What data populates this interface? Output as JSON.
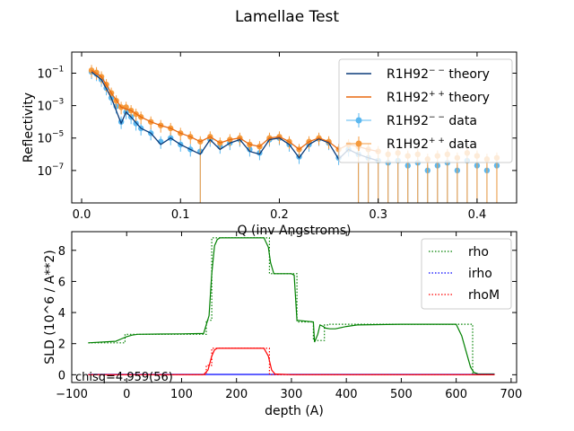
{
  "figure": {
    "title": "Lamellae Test"
  },
  "chart_data": [
    {
      "type": "scatter",
      "title": "",
      "xlabel": "Q (inv Angstroms)",
      "ylabel": "Reflectivity",
      "xscale": "linear",
      "yscale": "log",
      "xlim": [
        -0.01,
        0.44
      ],
      "ylim": [
        1e-09,
        2
      ],
      "xticks": [
        0.0,
        0.1,
        0.2,
        0.3,
        0.4
      ],
      "xtick_labels": [
        "0.0",
        "0.1",
        "0.2",
        "0.3",
        "0.4"
      ],
      "yticks": [
        1e-07,
        1e-05,
        0.001,
        0.1
      ],
      "ytick_labels": [
        "10",
        "10",
        "10",
        "10"
      ],
      "ytick_exponents": [
        "−7",
        "−5",
        "−3",
        "−1"
      ],
      "legend_position": "top-right",
      "legend": [
        {
          "label": "R1H92",
          "sup": "− −",
          "suffix": " theory",
          "kind": "line",
          "color": "#0b3b7a"
        },
        {
          "label": "R1H92",
          "sup": "+ +",
          "suffix": " theory",
          "kind": "line",
          "color": "#e8680e"
        },
        {
          "label": "R1H92",
          "sup": "− −",
          "suffix": " data",
          "kind": "errorbar",
          "color": "#5bb8f0"
        },
        {
          "label": "R1H92",
          "sup": "+ +",
          "suffix": " data",
          "kind": "errorbar",
          "color": "#f59a3c"
        }
      ],
      "series": [
        {
          "name": "R1H92−− data",
          "color": "#5bb8f0",
          "marker": "circle",
          "x": [
            0.01,
            0.015,
            0.02,
            0.025,
            0.03,
            0.035,
            0.04,
            0.045,
            0.05,
            0.055,
            0.06,
            0.07,
            0.08,
            0.09,
            0.1,
            0.11,
            0.12,
            0.13,
            0.14,
            0.15,
            0.16,
            0.17,
            0.18,
            0.19,
            0.2,
            0.21,
            0.22,
            0.23,
            0.24,
            0.25,
            0.26,
            0.27,
            0.28,
            0.29,
            0.3,
            0.31,
            0.32,
            0.33,
            0.34,
            0.35,
            0.36,
            0.37,
            0.38,
            0.39,
            0.4,
            0.41,
            0.42
          ],
          "y": [
            0.12,
            0.09,
            0.04,
            0.012,
            0.003,
            0.0009,
            0.0001,
            0.0004,
            0.0002,
            8e-05,
            4e-05,
            2e-05,
            6e-06,
            1e-05,
            4e-06,
            2e-06,
            1.5e-06,
            8e-06,
            3e-06,
            5e-06,
            8e-06,
            2e-06,
            1.2e-06,
            8e-06,
            1e-05,
            4e-06,
            7e-07,
            4e-06,
            9e-06,
            5e-06,
            6e-07,
            2e-06,
            1e-06,
            6e-07,
            4e-07,
            3e-07,
            4e-07,
            2e-07,
            3e-07,
            1e-07,
            2e-07,
            3e-07,
            1e-07,
            4e-07,
            2e-07,
            1e-07,
            2e-07
          ]
        },
        {
          "name": "R1H92++ data",
          "color": "#f59a3c",
          "marker": "circle",
          "x": [
            0.01,
            0.015,
            0.02,
            0.025,
            0.03,
            0.035,
            0.04,
            0.045,
            0.05,
            0.055,
            0.06,
            0.07,
            0.08,
            0.09,
            0.1,
            0.11,
            0.12,
            0.13,
            0.14,
            0.15,
            0.16,
            0.17,
            0.18,
            0.19,
            0.2,
            0.21,
            0.22,
            0.23,
            0.24,
            0.25,
            0.26,
            0.27,
            0.28,
            0.29,
            0.3,
            0.31,
            0.32,
            0.33,
            0.34,
            0.35,
            0.36,
            0.37,
            0.38,
            0.39,
            0.4,
            0.41,
            0.42
          ],
          "y": [
            0.15,
            0.11,
            0.06,
            0.02,
            0.006,
            0.002,
            0.0008,
            0.0008,
            0.0005,
            0.0003,
            0.0002,
            0.0001,
            6e-05,
            4e-05,
            2e-05,
            1.2e-05,
            6e-06,
            1.2e-05,
            5e-06,
            8e-06,
            1e-05,
            4e-06,
            3e-06,
            1e-05,
            1.2e-05,
            6e-06,
            2e-06,
            6e-06,
            1e-05,
            6e-06,
            2e-06,
            4e-06,
            3e-06,
            2e-06,
            1.5e-06,
            1e-06,
            1.2e-06,
            8e-07,
            1e-06,
            5e-07,
            8e-07,
            1e-06,
            6e-07,
            1.2e-06,
            8e-07,
            5e-07,
            6e-07
          ]
        },
        {
          "name": "R1H92−− theory",
          "color": "#0b3b7a",
          "marker": "line",
          "x": [
            0.01,
            0.02,
            0.03,
            0.04,
            0.045,
            0.05,
            0.06,
            0.07,
            0.08,
            0.09,
            0.1,
            0.11,
            0.12,
            0.13,
            0.14,
            0.15,
            0.16,
            0.17,
            0.18,
            0.19,
            0.2,
            0.21,
            0.22,
            0.23,
            0.24,
            0.25,
            0.26,
            0.27,
            0.28,
            0.29,
            0.3
          ],
          "y": [
            0.12,
            0.04,
            0.003,
            8e-05,
            0.0004,
            0.0002,
            4e-05,
            2e-05,
            4e-06,
            1e-05,
            4e-06,
            2e-06,
            1e-06,
            8e-06,
            2e-06,
            5e-06,
            8e-06,
            1.5e-06,
            1e-06,
            8e-06,
            1e-05,
            4e-06,
            6e-07,
            4e-06,
            9e-06,
            5e-06,
            5e-07,
            2e-06,
            1e-06,
            6e-07,
            4e-07
          ]
        },
        {
          "name": "R1H92++ theory",
          "color": "#e8680e",
          "marker": "line",
          "x": [
            0.01,
            0.02,
            0.03,
            0.04,
            0.05,
            0.06,
            0.07,
            0.08,
            0.09,
            0.1,
            0.11,
            0.12,
            0.13,
            0.14,
            0.15,
            0.16,
            0.17,
            0.18,
            0.19,
            0.2,
            0.21,
            0.22,
            0.23,
            0.24,
            0.25,
            0.26,
            0.27,
            0.28,
            0.29,
            0.3
          ],
          "y": [
            0.15,
            0.06,
            0.006,
            0.0008,
            0.0005,
            0.0002,
            0.0001,
            6e-05,
            4e-05,
            2e-05,
            1.2e-05,
            6e-06,
            1.2e-05,
            5e-06,
            8e-06,
            1e-05,
            4e-06,
            3e-06,
            1e-05,
            1.2e-05,
            6e-06,
            2e-06,
            6e-06,
            1e-05,
            6e-06,
            2e-06,
            4e-06,
            3e-06,
            2e-06,
            1.5e-06
          ]
        }
      ]
    },
    {
      "type": "line",
      "title": "",
      "xlabel": "depth (A)",
      "ylabel": "SLD (10^6 / A**2)",
      "xlim": [
        -100,
        710
      ],
      "ylim": [
        -0.5,
        9.2
      ],
      "xticks": [
        -100,
        0,
        100,
        200,
        300,
        400,
        500,
        600,
        700
      ],
      "xtick_labels": [
        "−100",
        "0",
        "100",
        "200",
        "300",
        "400",
        "500",
        "600",
        "700"
      ],
      "yticks": [
        0,
        2,
        4,
        6,
        8
      ],
      "ytick_labels": [
        "0",
        "2",
        "4",
        "6",
        "8"
      ],
      "legend_position": "top-right",
      "annotation": "chisq=4.959(56)",
      "legend": [
        {
          "label": "rho",
          "color": "#008000"
        },
        {
          "label": "irho",
          "color": "#0000ff"
        },
        {
          "label": "rhoM",
          "color": "#ff0000"
        }
      ],
      "series": [
        {
          "name": "rho",
          "color": "#008000",
          "style": "solid",
          "x": [
            -70,
            -20,
            -10,
            0,
            10,
            20,
            60,
            100,
            140,
            150,
            155,
            160,
            165,
            170,
            250,
            258,
            262,
            268,
            300,
            305,
            310,
            340,
            342,
            348,
            352,
            358,
            362,
            370,
            380,
            400,
            420,
            500,
            600,
            610,
            618,
            626,
            632,
            640,
            670
          ],
          "y": [
            2.05,
            2.15,
            2.3,
            2.45,
            2.55,
            2.6,
            2.62,
            2.63,
            2.65,
            3.8,
            6.5,
            8.3,
            8.7,
            8.8,
            8.8,
            8.2,
            7.2,
            6.5,
            6.5,
            6.4,
            3.5,
            3.4,
            2.1,
            2.6,
            3.2,
            3.1,
            3.0,
            2.95,
            2.95,
            3.1,
            3.2,
            3.25,
            3.25,
            2.5,
            1.5,
            0.5,
            0.15,
            0.05,
            0.05
          ]
        },
        {
          "name": "rho (step)",
          "color": "#008000",
          "style": "dotted",
          "x": [
            -70,
            -3,
            -3,
            145,
            145,
            155,
            155,
            260,
            260,
            310,
            310,
            340,
            340,
            360,
            360,
            370,
            370,
            630,
            630,
            670
          ],
          "y": [
            2.05,
            2.05,
            2.6,
            2.6,
            3.5,
            3.5,
            8.8,
            8.8,
            6.5,
            6.5,
            3.4,
            3.4,
            2.2,
            2.2,
            3.2,
            3.2,
            3.25,
            3.25,
            0,
            0
          ]
        },
        {
          "name": "irho",
          "color": "#0000ff",
          "style": "solid",
          "x": [
            -70,
            670
          ],
          "y": [
            0.02,
            0.02
          ]
        },
        {
          "name": "rhoM",
          "color": "#ff0000",
          "style": "solid",
          "x": [
            -70,
            140,
            148,
            155,
            160,
            165,
            250,
            258,
            264,
            270,
            300,
            670
          ],
          "y": [
            0,
            0,
            0.3,
            1.2,
            1.6,
            1.7,
            1.7,
            1.2,
            0.3,
            0.05,
            0,
            0
          ]
        },
        {
          "name": "rhoM (step)",
          "color": "#ff0000",
          "style": "dotted",
          "x": [
            -70,
            145,
            145,
            155,
            155,
            260,
            260,
            670
          ],
          "y": [
            0,
            0,
            0.6,
            0.6,
            1.7,
            1.7,
            0,
            0
          ]
        }
      ]
    }
  ]
}
